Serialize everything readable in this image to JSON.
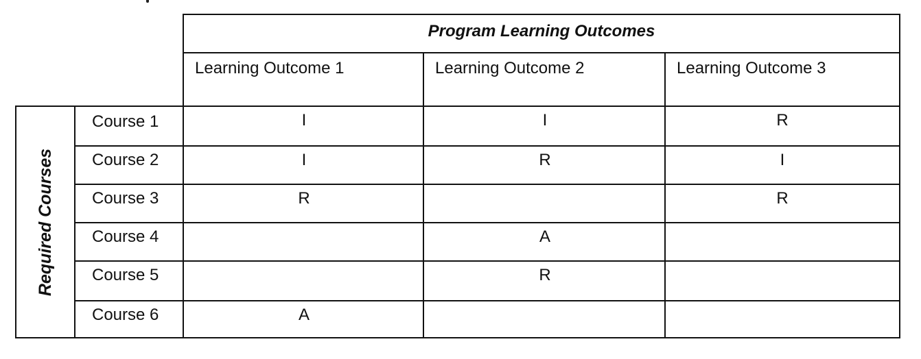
{
  "table": {
    "header_title": "Program Learning Outcomes",
    "side_title": "Required Courses",
    "columns": [
      "Learning Outcome 1",
      "Learning Outcome 2",
      "Learning Outcome 3"
    ],
    "rows": [
      {
        "course": "Course 1",
        "values": [
          "I",
          "I",
          "R"
        ]
      },
      {
        "course": "Course 2",
        "values": [
          "I",
          "R",
          "I"
        ]
      },
      {
        "course": "Course 3",
        "values": [
          "R",
          "",
          "R"
        ]
      },
      {
        "course": "Course 4",
        "values": [
          "",
          "A",
          ""
        ]
      },
      {
        "course": "Course 5",
        "values": [
          "",
          "R",
          ""
        ]
      },
      {
        "course": "Course 6",
        "values": [
          "A",
          "",
          ""
        ]
      }
    ]
  }
}
